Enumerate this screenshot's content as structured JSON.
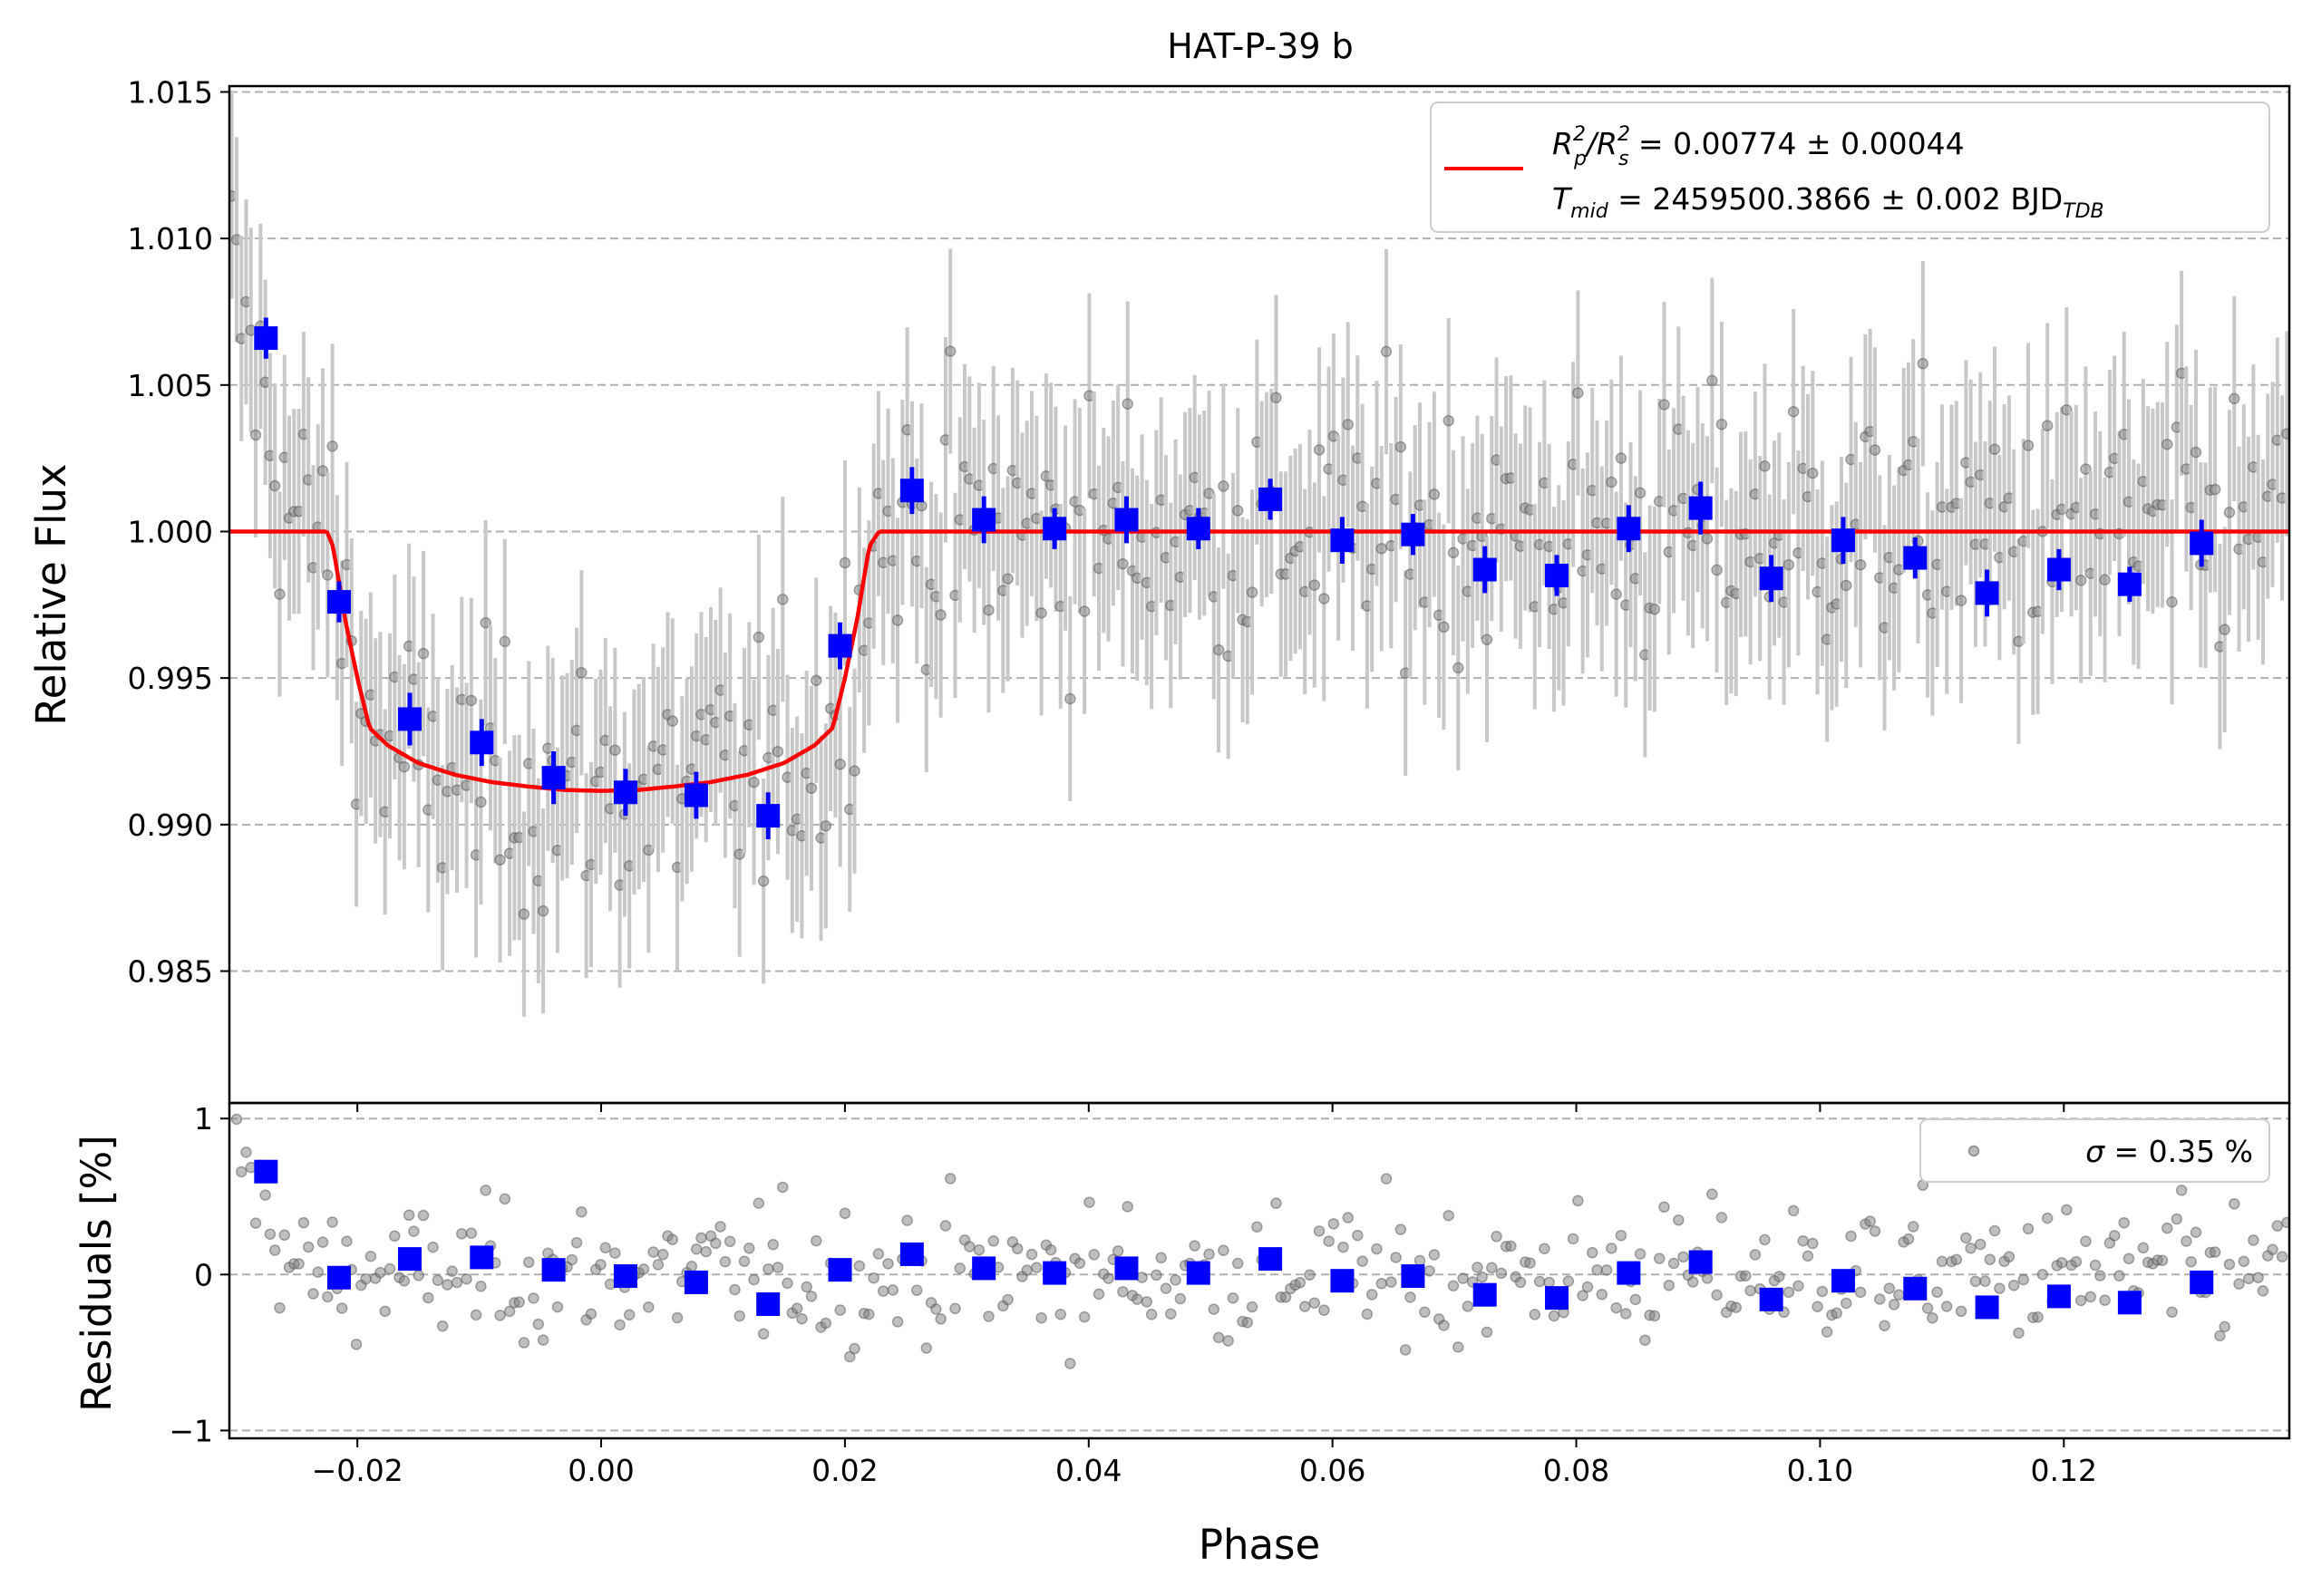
{
  "chart_data": [
    {
      "type": "scatter",
      "panel": "top",
      "title": "HAT-P-39 b",
      "xlabel": "",
      "ylabel": "Relative Flux",
      "xlim": [
        -0.0305,
        0.1385
      ],
      "ylim": [
        0.9805,
        1.0152
      ],
      "xticks": [
        "−0.02",
        "0.00",
        "0.02",
        "0.04",
        "0.06",
        "0.08",
        "0.10",
        "0.12"
      ],
      "xtick_values": [
        -0.02,
        0.0,
        0.02,
        0.04,
        0.06,
        0.08,
        0.1,
        0.12
      ],
      "yticks": [
        "0.985",
        "0.990",
        "0.995",
        "1.000",
        "1.005",
        "1.010",
        "1.015"
      ],
      "ytick_values": [
        0.985,
        0.99,
        0.995,
        1.0,
        1.005,
        1.01,
        1.015
      ],
      "grid": "horizontal dashed",
      "legend_position": "top-right",
      "legend": {
        "line1_pre": "R",
        "line1_sup1": "2",
        "line1_sub1": "p",
        "line1_mid": "/R",
        "line1_sup2": "2",
        "line1_sub2": "s",
        "line1_post": " = 0.00774 ± 0.00044",
        "line2_pre": "T",
        "line2_sub1": "mid",
        "line2_mid": " = 2459500.3866 ± 0.002 BJD",
        "line2_sub2": "TDB"
      },
      "colors": {
        "model": "#ff0000",
        "binned": "#0000ff",
        "raw": "#808080",
        "errorbar": "#c8c8c8"
      },
      "model": {
        "x": [
          -0.0305,
          -0.0225,
          -0.022,
          -0.021,
          -0.02,
          -0.019,
          -0.0175,
          -0.015,
          -0.012,
          -0.009,
          -0.006,
          -0.003,
          0.0,
          0.003,
          0.006,
          0.009,
          0.012,
          0.015,
          0.0175,
          0.019,
          0.02,
          0.021,
          0.022,
          0.0228,
          0.1385
        ],
        "y": [
          1.0,
          1.0,
          0.9995,
          0.997,
          0.995,
          0.9933,
          0.9927,
          0.9921,
          0.9917,
          0.99145,
          0.9913,
          0.99118,
          0.99115,
          0.99118,
          0.9913,
          0.99145,
          0.9917,
          0.9921,
          0.9927,
          0.9933,
          0.995,
          0.997,
          0.9995,
          1.0,
          1.0
        ]
      },
      "binned": {
        "x": [
          -0.0275,
          -0.0215,
          -0.0157,
          -0.0098,
          -0.0039,
          0.002,
          0.0078,
          0.0137,
          0.0196,
          0.0255,
          0.0314,
          0.0372,
          0.0431,
          0.049,
          0.0549,
          0.0608,
          0.0666,
          0.0725,
          0.0784,
          0.0843,
          0.0902,
          0.096,
          0.1019,
          0.1078,
          0.1137,
          0.1196,
          0.1254,
          0.1313
        ],
        "y": [
          1.0066,
          0.9976,
          0.9936,
          0.9928,
          0.9916,
          0.9911,
          0.991,
          0.9903,
          0.9961,
          1.0014,
          1.0004,
          1.0001,
          1.0004,
          1.0001,
          1.0011,
          0.9997,
          0.9999,
          0.9987,
          0.9985,
          1.0001,
          1.0008,
          0.9984,
          0.9997,
          0.9991,
          0.9979,
          0.9987,
          0.9982,
          0.9996
        ],
        "yerr": [
          0.0007,
          0.0007,
          0.0009,
          0.0008,
          0.0009,
          0.0008,
          0.0008,
          0.0008,
          0.0008,
          0.0008,
          0.0008,
          0.0007,
          0.0008,
          0.0007,
          0.0007,
          0.0008,
          0.0007,
          0.0008,
          0.0007,
          0.0008,
          0.0009,
          0.0008,
          0.0008,
          0.0007,
          0.0008,
          0.0007,
          0.0006,
          0.0008
        ]
      },
      "raw_error": 0.0035
    },
    {
      "type": "scatter",
      "panel": "bottom",
      "title": "",
      "xlabel": "Phase",
      "ylabel": "Residuals [%]",
      "xlim": [
        -0.0305,
        0.1385
      ],
      "ylim": [
        -1.05,
        1.1
      ],
      "yticks": [
        "−1",
        "0",
        "1"
      ],
      "ytick_values": [
        -1,
        0,
        1
      ],
      "grid": "horizontal dashed",
      "legend_position": "top-right",
      "legend": {
        "sigma": "σ",
        "text": " = 0.35 %"
      },
      "binned": {
        "y": [
          0.66,
          -0.02,
          0.1,
          0.11,
          0.03,
          -0.01,
          -0.05,
          -0.19,
          0.03,
          0.13,
          0.04,
          0.01,
          0.04,
          0.01,
          0.1,
          -0.04,
          -0.01,
          -0.13,
          -0.15,
          0.01,
          0.08,
          -0.16,
          -0.04,
          -0.09,
          -0.21,
          -0.14,
          -0.18,
          -0.05
        ]
      },
      "sigma_percent": 0.35
    }
  ]
}
